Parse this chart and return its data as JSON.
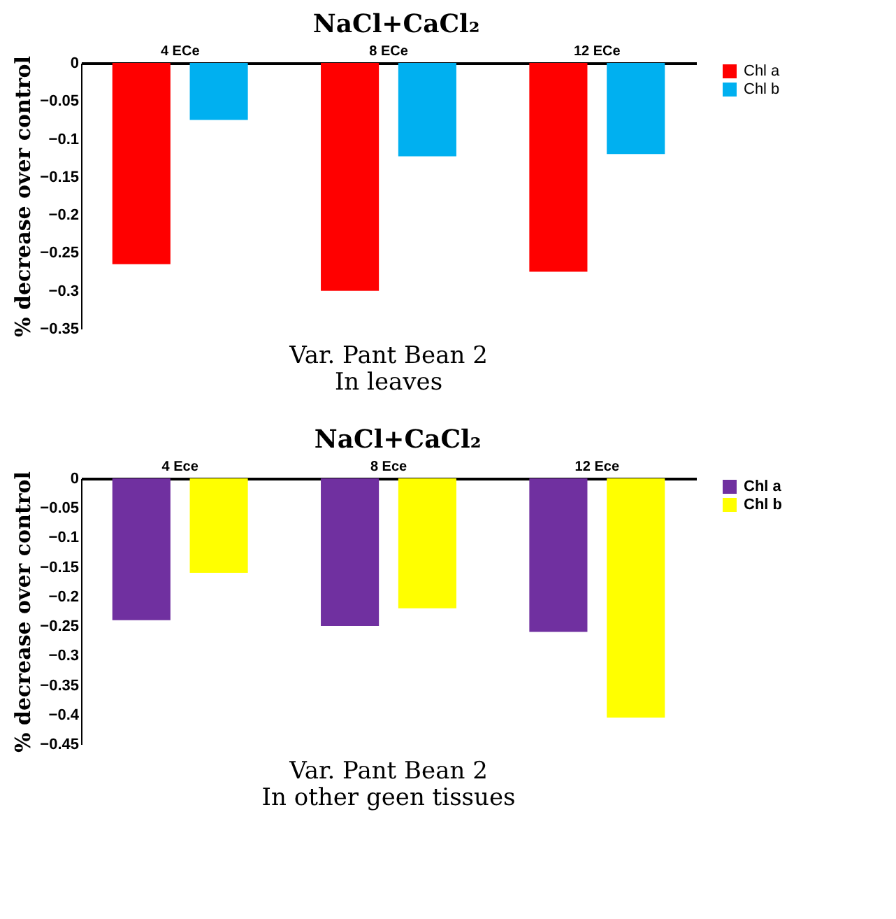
{
  "chart_data": [
    {
      "type": "bar",
      "title": "NaCl+CaCl₂",
      "xlabel": "Var. Pant Bean 2\nIn leaves",
      "ylabel": "% decrease over control",
      "categories": [
        "4 ECe",
        "8 ECe",
        "12 ECe"
      ],
      "series": [
        {
          "name": "Chl a",
          "color": "#ff0000",
          "values": [
            -0.265,
            -0.3,
            -0.275
          ]
        },
        {
          "name": "Chl b",
          "color": "#00b0f0",
          "values": [
            -0.075,
            -0.123,
            -0.12
          ]
        }
      ],
      "ylim": [
        -0.35,
        0
      ],
      "yticks": [
        -0.35,
        -0.3,
        -0.25,
        -0.2,
        -0.15,
        -0.1,
        -0.05,
        0
      ],
      "grid": false,
      "legend": "right"
    },
    {
      "type": "bar",
      "title": "NaCl+CaCl₂",
      "xlabel": "Var. Pant Bean 2\nIn other geen tissues",
      "ylabel": "% decrease over control",
      "categories": [
        "4 Ece",
        "8 Ece",
        "12 Ece"
      ],
      "series": [
        {
          "name": "Chl a",
          "color": "#7030a0",
          "values": [
            -0.24,
            -0.25,
            -0.26
          ]
        },
        {
          "name": "Chl b",
          "color": "#ffff00",
          "values": [
            -0.16,
            -0.22,
            -0.405
          ]
        }
      ],
      "ylim": [
        -0.45,
        0
      ],
      "yticks": [
        -0.45,
        -0.4,
        -0.35,
        -0.3,
        -0.25,
        -0.2,
        -0.15,
        -0.1,
        -0.05,
        0
      ],
      "grid": false,
      "legend": "right"
    }
  ]
}
